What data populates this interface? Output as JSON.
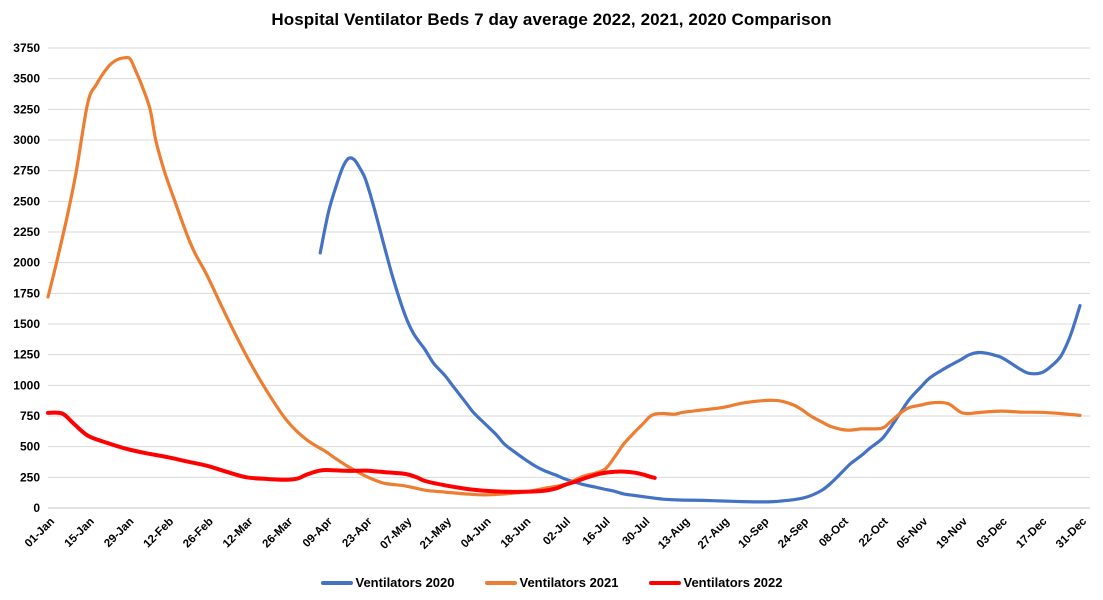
{
  "chart_data": {
    "type": "line",
    "title": "Hospital Ventilator Beds 7 day average 2022, 2021, 2020 Comparison",
    "xlabel": "",
    "ylabel": "",
    "ylim": [
      0,
      3750
    ],
    "y_tick_step": 250,
    "y_tick_labels": [
      "0",
      "250",
      "500",
      "750",
      "1000",
      "1250",
      "1500",
      "1750",
      "2000",
      "2250",
      "2500",
      "2750",
      "3000",
      "3250",
      "3500",
      "3750"
    ],
    "x_tick_labels": [
      "01-Jan",
      "15-Jan",
      "29-Jan",
      "12-Feb",
      "26-Feb",
      "12-Mar",
      "26-Mar",
      "09-Apr",
      "23-Apr",
      "07-May",
      "21-May",
      "04-Jun",
      "18-Jun",
      "02-Jul",
      "16-Jul",
      "30-Jul",
      "13-Aug",
      "27-Aug",
      "10-Sep",
      "24-Sep",
      "08-Oct",
      "22-Oct",
      "05-Nov",
      "19-Nov",
      "03-Dec",
      "17-Dec",
      "31-Dec"
    ],
    "x_tick_interval_days": 14,
    "x_domain_days": [
      0,
      364
    ],
    "grid": "horizontal gridlines only",
    "gridline_color": "#D9D9D9",
    "legend_position": "bottom-center",
    "series": [
      {
        "name": "Ventilators 2020",
        "color": "#4472C4",
        "stroke_width": 3.2,
        "points": [
          [
            96,
            2080
          ],
          [
            99,
            2420
          ],
          [
            102,
            2650
          ],
          [
            104,
            2780
          ],
          [
            106,
            2850
          ],
          [
            108,
            2840
          ],
          [
            110,
            2770
          ],
          [
            112,
            2680
          ],
          [
            115,
            2450
          ],
          [
            119,
            2100
          ],
          [
            122,
            1850
          ],
          [
            126,
            1570
          ],
          [
            129,
            1420
          ],
          [
            133,
            1290
          ],
          [
            136,
            1180
          ],
          [
            140,
            1080
          ],
          [
            143,
            990
          ],
          [
            147,
            870
          ],
          [
            150,
            780
          ],
          [
            154,
            690
          ],
          [
            158,
            600
          ],
          [
            161,
            520
          ],
          [
            165,
            450
          ],
          [
            168,
            400
          ],
          [
            172,
            340
          ],
          [
            175,
            305
          ],
          [
            179,
            270
          ],
          [
            182,
            240
          ],
          [
            186,
            210
          ],
          [
            189,
            190
          ],
          [
            193,
            170
          ],
          [
            196,
            155
          ],
          [
            200,
            135
          ],
          [
            203,
            115
          ],
          [
            207,
            102
          ],
          [
            210,
            92
          ],
          [
            214,
            80
          ],
          [
            217,
            72
          ],
          [
            221,
            67
          ],
          [
            224,
            64
          ],
          [
            231,
            62
          ],
          [
            238,
            57
          ],
          [
            245,
            52
          ],
          [
            252,
            50
          ],
          [
            256,
            52
          ],
          [
            259,
            58
          ],
          [
            263,
            68
          ],
          [
            266,
            80
          ],
          [
            269,
            100
          ],
          [
            273,
            145
          ],
          [
            276,
            200
          ],
          [
            280,
            290
          ],
          [
            283,
            360
          ],
          [
            287,
            430
          ],
          [
            290,
            490
          ],
          [
            294,
            560
          ],
          [
            297,
            650
          ],
          [
            301,
            790
          ],
          [
            304,
            890
          ],
          [
            308,
            990
          ],
          [
            311,
            1060
          ],
          [
            315,
            1120
          ],
          [
            318,
            1160
          ],
          [
            322,
            1210
          ],
          [
            325,
            1250
          ],
          [
            328,
            1268
          ],
          [
            331,
            1262
          ],
          [
            334,
            1245
          ],
          [
            336,
            1230
          ],
          [
            339,
            1190
          ],
          [
            343,
            1130
          ],
          [
            346,
            1098
          ],
          [
            350,
            1100
          ],
          [
            353,
            1140
          ],
          [
            357,
            1230
          ],
          [
            360,
            1370
          ],
          [
            362,
            1500
          ],
          [
            364,
            1650
          ]
        ]
      },
      {
        "name": "Ventilators 2021",
        "color": "#ED7D31",
        "stroke_width": 3.2,
        "points": [
          [
            0,
            1720
          ],
          [
            3,
            2000
          ],
          [
            7,
            2400
          ],
          [
            10,
            2750
          ],
          [
            14,
            3300
          ],
          [
            17,
            3450
          ],
          [
            21,
            3590
          ],
          [
            24,
            3650
          ],
          [
            27,
            3670
          ],
          [
            29,
            3660
          ],
          [
            31,
            3560
          ],
          [
            33,
            3450
          ],
          [
            36,
            3250
          ],
          [
            38,
            3000
          ],
          [
            41,
            2750
          ],
          [
            44,
            2550
          ],
          [
            49,
            2230
          ],
          [
            52,
            2070
          ],
          [
            56,
            1900
          ],
          [
            63,
            1560
          ],
          [
            70,
            1240
          ],
          [
            77,
            960
          ],
          [
            84,
            720
          ],
          [
            91,
            560
          ],
          [
            98,
            460
          ],
          [
            101,
            410
          ],
          [
            105,
            350
          ],
          [
            108,
            310
          ],
          [
            112,
            260
          ],
          [
            115,
            230
          ],
          [
            119,
            200
          ],
          [
            126,
            180
          ],
          [
            133,
            145
          ],
          [
            140,
            130
          ],
          [
            147,
            115
          ],
          [
            154,
            107
          ],
          [
            161,
            115
          ],
          [
            168,
            130
          ],
          [
            175,
            160
          ],
          [
            182,
            190
          ],
          [
            186,
            230
          ],
          [
            189,
            260
          ],
          [
            196,
            310
          ],
          [
            200,
            420
          ],
          [
            203,
            520
          ],
          [
            207,
            620
          ],
          [
            210,
            690
          ],
          [
            212,
            740
          ],
          [
            214,
            765
          ],
          [
            217,
            770
          ],
          [
            221,
            765
          ],
          [
            224,
            780
          ],
          [
            231,
            800
          ],
          [
            238,
            820
          ],
          [
            245,
            855
          ],
          [
            252,
            875
          ],
          [
            256,
            878
          ],
          [
            259,
            870
          ],
          [
            263,
            840
          ],
          [
            266,
            800
          ],
          [
            269,
            750
          ],
          [
            273,
            700
          ],
          [
            276,
            665
          ],
          [
            280,
            640
          ],
          [
            283,
            635
          ],
          [
            287,
            645
          ],
          [
            294,
            650
          ],
          [
            297,
            700
          ],
          [
            301,
            780
          ],
          [
            304,
            820
          ],
          [
            308,
            840
          ],
          [
            311,
            855
          ],
          [
            315,
            860
          ],
          [
            318,
            845
          ],
          [
            322,
            780
          ],
          [
            325,
            770
          ],
          [
            328,
            778
          ],
          [
            336,
            790
          ],
          [
            343,
            782
          ],
          [
            350,
            780
          ],
          [
            357,
            770
          ],
          [
            364,
            755
          ]
        ]
      },
      {
        "name": "Ventilators 2022",
        "color": "#FF0000",
        "stroke_width": 4,
        "points": [
          [
            0,
            775
          ],
          [
            5,
            770
          ],
          [
            9,
            690
          ],
          [
            14,
            590
          ],
          [
            21,
            530
          ],
          [
            28,
            480
          ],
          [
            35,
            445
          ],
          [
            42,
            415
          ],
          [
            49,
            380
          ],
          [
            56,
            345
          ],
          [
            63,
            295
          ],
          [
            70,
            250
          ],
          [
            77,
            237
          ],
          [
            84,
            230
          ],
          [
            88,
            240
          ],
          [
            91,
            270
          ],
          [
            95,
            300
          ],
          [
            98,
            310
          ],
          [
            105,
            303
          ],
          [
            112,
            305
          ],
          [
            115,
            300
          ],
          [
            119,
            292
          ],
          [
            126,
            278
          ],
          [
            130,
            250
          ],
          [
            133,
            220
          ],
          [
            140,
            185
          ],
          [
            147,
            158
          ],
          [
            154,
            140
          ],
          [
            161,
            133
          ],
          [
            168,
            132
          ],
          [
            175,
            140
          ],
          [
            179,
            158
          ],
          [
            182,
            185
          ],
          [
            186,
            215
          ],
          [
            189,
            240
          ],
          [
            193,
            270
          ],
          [
            196,
            285
          ],
          [
            200,
            295
          ],
          [
            203,
            297
          ],
          [
            207,
            288
          ],
          [
            210,
            272
          ],
          [
            212,
            258
          ],
          [
            214,
            245
          ]
        ]
      }
    ]
  }
}
